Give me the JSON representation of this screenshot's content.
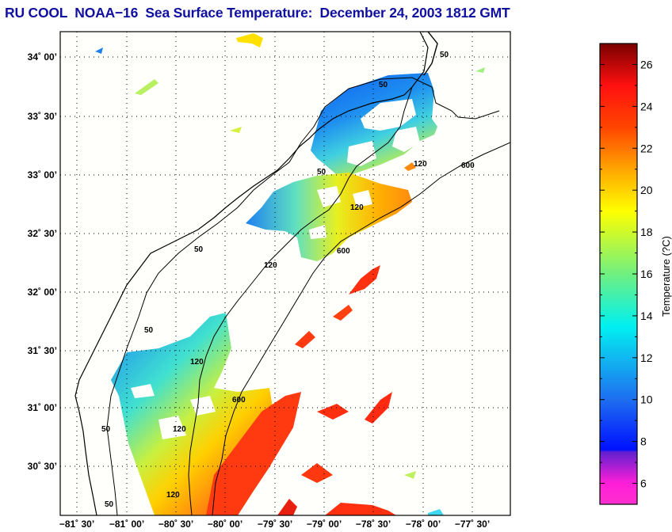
{
  "title": "RU COOL  NOAA−16  Sea Surface Temperature:  December 24, 2003 1812 GMT",
  "map": {
    "lat_labels": [
      "34˚ 00’",
      "33˚ 30’",
      "33˚ 00’",
      "32˚ 30’",
      "32˚ 00’",
      "31˚ 30’",
      "31˚ 00’",
      "30˚ 30’"
    ],
    "lon_labels": [
      "−81˚ 30’",
      "−81˚ 00’",
      "−80˚ 30’",
      "−80˚ 00’",
      "−79˚ 30’",
      "−79˚ 00’",
      "−78˚ 30’",
      "−78˚ 00’",
      "−77˚ 30’"
    ],
    "contour_labels": {
      "c50a": "50",
      "c50b": "50",
      "c50c": "50",
      "c50d": "50",
      "c50e": "50",
      "c50f": "50",
      "c50g": "50",
      "c120a": "120",
      "c120b": "120",
      "c120c": "120",
      "c120d": "120",
      "c120e": "120",
      "c120f": "120",
      "c600a": "600",
      "c600b": "600",
      "c600c": "600"
    }
  },
  "colorbar": {
    "label": "Temperature (?C)",
    "min": 5,
    "max": 27,
    "tick_labels": [
      "26",
      "24",
      "22",
      "20",
      "18",
      "16",
      "14",
      "12",
      "10",
      "8",
      "6"
    ],
    "stops": [
      {
        "value": 5,
        "color": "#ff30d0"
      },
      {
        "value": 6,
        "color": "#ff1ed8"
      },
      {
        "value": 7.5,
        "color": "#6020d0"
      },
      {
        "value": 7.6,
        "color": "#0010ff"
      },
      {
        "value": 10,
        "color": "#1e6ef0"
      },
      {
        "value": 12,
        "color": "#10b8f0"
      },
      {
        "value": 13.5,
        "color": "#00f0f0"
      },
      {
        "value": 16,
        "color": "#70f080"
      },
      {
        "value": 19,
        "color": "#ffff00"
      },
      {
        "value": 21,
        "color": "#ffa500"
      },
      {
        "value": 23,
        "color": "#ff4500"
      },
      {
        "value": 25,
        "color": "#ff1010"
      },
      {
        "value": 27,
        "color": "#7a0000"
      }
    ]
  }
}
